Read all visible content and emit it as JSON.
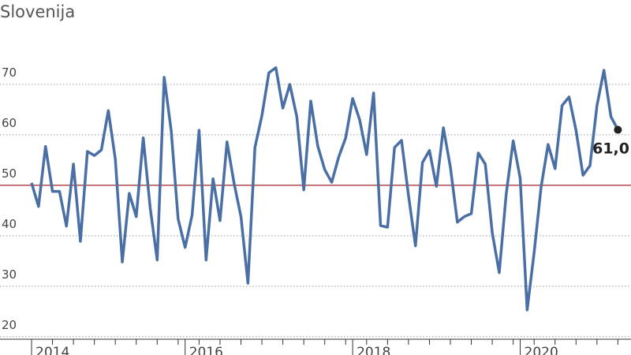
{
  "chart_data": {
    "type": "line",
    "title": "Slovenija",
    "categories": [
      "2014",
      null,
      null,
      null,
      null,
      null,
      null,
      null,
      null,
      null,
      null,
      null,
      null,
      null,
      null,
      null,
      null,
      null,
      null,
      null,
      null,
      null,
      "2016",
      null,
      null,
      null,
      null,
      null,
      null,
      null,
      null,
      null,
      null,
      null,
      null,
      null,
      null,
      null,
      null,
      null,
      null,
      null,
      null,
      null,
      null,
      null,
      "2018",
      null,
      null,
      null,
      null,
      null,
      null,
      null,
      null,
      null,
      null,
      null,
      null,
      null,
      null,
      null,
      null,
      null,
      null,
      null,
      null,
      null,
      null,
      null,
      "2020",
      null,
      null,
      null,
      null,
      null,
      null,
      null,
      null,
      null,
      null,
      null,
      null,
      null,
      null
    ],
    "series": [
      {
        "name": "Slovenija",
        "color": "#4a6fa5",
        "values": [
          50.5,
          45.8,
          57.7,
          48.8,
          48.8,
          41.9,
          54.2,
          38.9,
          56.7,
          55.9,
          57.0,
          64.8,
          55.2,
          34.8,
          48.4,
          43.8,
          59.4,
          45.5,
          35.2,
          71.4,
          60.9,
          43.3,
          37.7,
          44.1,
          60.9,
          35.2,
          51.3,
          43.0,
          58.6,
          50.5,
          43.8,
          30.6,
          57.5,
          63.8,
          72.3,
          73.3,
          65.3,
          70.0,
          63.6,
          49.1,
          66.7,
          57.8,
          53.1,
          50.6,
          55.6,
          59.4,
          67.2,
          63.0,
          56.1,
          68.3,
          42.0,
          41.7,
          57.5,
          58.9,
          48.0,
          38.0,
          54.5,
          56.9,
          49.8,
          61.4,
          53.6,
          42.7,
          43.8,
          44.4,
          56.4,
          54.2,
          40.6,
          32.7,
          48.3,
          58.8,
          51.4,
          25.3,
          36.7,
          49.7,
          58.1,
          53.3,
          65.8,
          67.5,
          60.9,
          52.0,
          53.9,
          65.8,
          72.8,
          63.6,
          61.0
        ],
        "value_labels": [
          null,
          null,
          null,
          null,
          null,
          null,
          null,
          null,
          null,
          null,
          null,
          null,
          null,
          null,
          null,
          null,
          null,
          null,
          null,
          null,
          null,
          null,
          null,
          null,
          null,
          null,
          null,
          null,
          null,
          null,
          null,
          null,
          null,
          null,
          null,
          null,
          null,
          null,
          null,
          null,
          null,
          null,
          null,
          null,
          null,
          null,
          null,
          null,
          null,
          null,
          null,
          null,
          null,
          null,
          null,
          null,
          null,
          null,
          null,
          null,
          null,
          null,
          null,
          null,
          null,
          null,
          null,
          null,
          null,
          null,
          null,
          null,
          null,
          null,
          null,
          null,
          null,
          null,
          null,
          null,
          null,
          null,
          null,
          null,
          "61,0"
        ]
      }
    ],
    "ylim": [
      17,
      84
    ],
    "yticks": [
      20,
      30,
      40,
      50,
      60,
      70
    ],
    "grid": true,
    "reference_line": {
      "value": 50,
      "color": "#a0262c"
    }
  }
}
